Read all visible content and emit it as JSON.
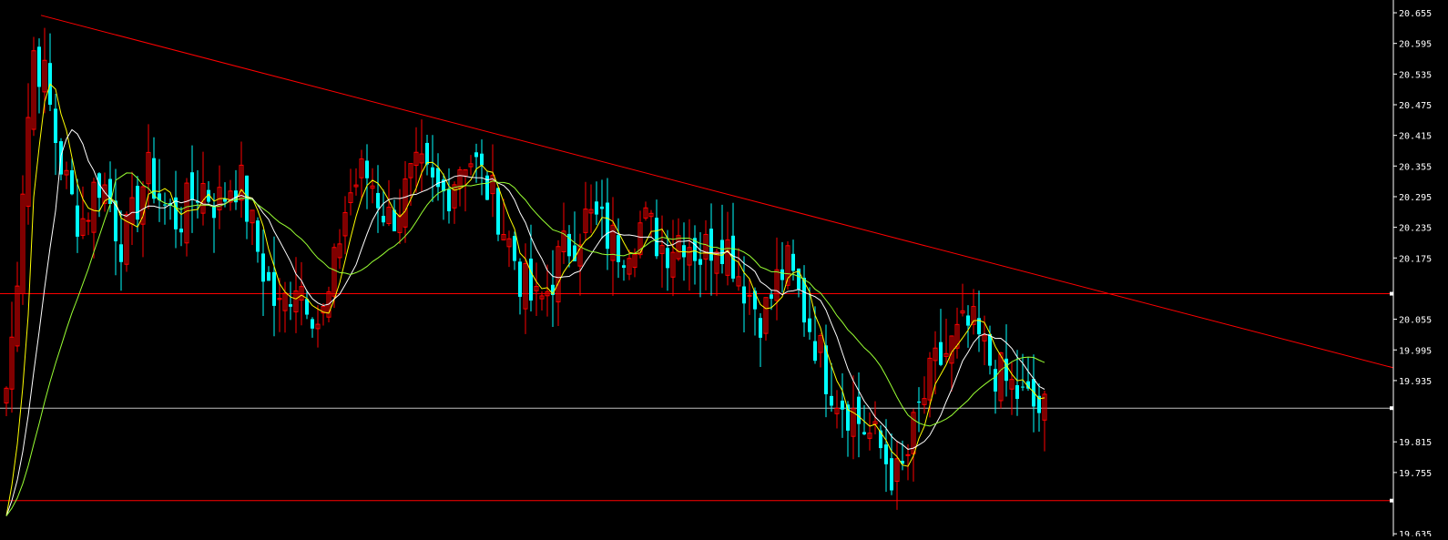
{
  "chart_data": {
    "type": "candlestick",
    "title": "",
    "ylim": [
      19.63,
      20.68
    ],
    "y_ticks": [
      {
        "value": 20.655,
        "label": "20.655"
      },
      {
        "value": 20.595,
        "label": "20.595"
      },
      {
        "value": 20.535,
        "label": "20.535"
      },
      {
        "value": 20.475,
        "label": "20.475"
      },
      {
        "value": 20.415,
        "label": "20.415"
      },
      {
        "value": 20.355,
        "label": "20.355"
      },
      {
        "value": 20.295,
        "label": "20.295"
      },
      {
        "value": 20.235,
        "label": "20.235"
      },
      {
        "value": 20.175,
        "label": "20.175"
      },
      {
        "value": 20.055,
        "label": "20.055"
      },
      {
        "value": 19.995,
        "label": "19.995"
      },
      {
        "value": 19.935,
        "label": "19.935"
      },
      {
        "value": 19.815,
        "label": "19.815"
      },
      {
        "value": 19.755,
        "label": "19.755"
      },
      {
        "value": 19.635,
        "label": "19.635"
      }
    ],
    "horizontal_lines": [
      {
        "value": 20.105,
        "label": "20.105",
        "color": "#ff0000",
        "tag_bg": "#ff0000"
      },
      {
        "value": 19.881,
        "label": "19.881",
        "color": "#c0c0c0",
        "tag_bg": "#ffffff"
      },
      {
        "value": 19.7,
        "label": "19.700",
        "color": "#ff0000",
        "tag_bg": "#ff0000"
      }
    ],
    "trendline": {
      "from": [
        0,
        20.65
      ],
      "to": [
        190,
        19.96
      ],
      "color": "#ff0000"
    },
    "colors": {
      "up": "#ff0000",
      "down": "#00ffff",
      "ma_fast": "#ffff00",
      "ma_mid": "#ffffff",
      "ma_slow": "#99ff33",
      "grid": "none",
      "background": "#000000"
    },
    "bar_count": 191,
    "candles_step": [
      20.52,
      20.56,
      20.63,
      20.6,
      20.56,
      20.52,
      20.43,
      20.36,
      20.3,
      20.26,
      20.25,
      20.3,
      20.33,
      20.3,
      20.24,
      20.2,
      20.24,
      20.3,
      20.34,
      20.32,
      20.28,
      20.26,
      20.25,
      20.27,
      20.3,
      20.32,
      20.3,
      20.28,
      20.3,
      20.33,
      20.32,
      20.26,
      20.2,
      20.15,
      20.1,
      20.07,
      20.1,
      20.14,
      20.12,
      20.09,
      20.05,
      20.07,
      20.15,
      20.25,
      20.3,
      20.33,
      20.34,
      20.32,
      20.28,
      20.25,
      20.27,
      20.3,
      20.33,
      20.34,
      20.32,
      20.3,
      20.3,
      20.32,
      20.36,
      20.38,
      20.36,
      20.33,
      20.3,
      20.27,
      20.22,
      20.18,
      20.13,
      20.1,
      20.08,
      20.1,
      20.14,
      20.18,
      20.2,
      20.22,
      20.25,
      20.25,
      20.24,
      20.22,
      20.2,
      20.2,
      20.22,
      20.24,
      20.24,
      20.22,
      20.2,
      20.2,
      20.22,
      20.22,
      20.2,
      20.18,
      20.2,
      20.22,
      20.21,
      20.18,
      20.14,
      20.11,
      20.08,
      20.06,
      20.1,
      20.14,
      20.16,
      20.12,
      20.08,
      20.04,
      20.0,
      19.95,
      19.92,
      19.9,
      19.88,
      19.86,
      19.84,
      19.82,
      19.8,
      19.77,
      19.74,
      19.76,
      19.82,
      19.88,
      19.92,
      19.96,
      19.98,
      20.0,
      20.02,
      20.04,
      20.03,
      20.0,
      19.97,
      19.95,
      19.93,
      19.92,
      19.9,
      19.89,
      19.88,
      19.87
    ],
    "x_axis_labels": []
  }
}
